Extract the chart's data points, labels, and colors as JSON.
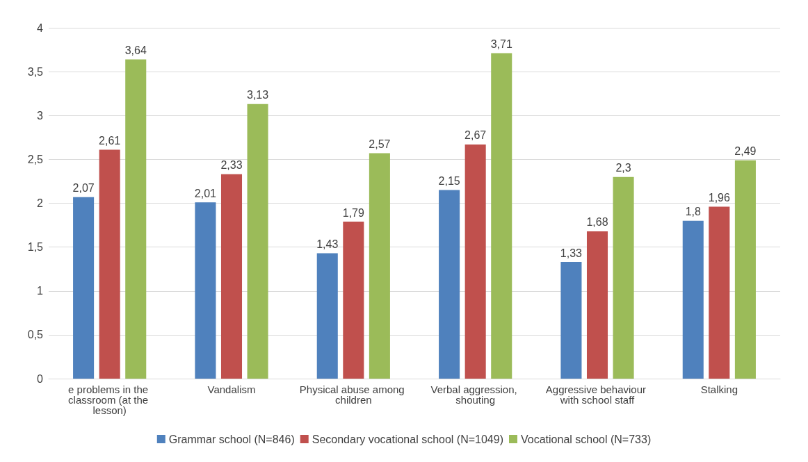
{
  "chart_data": {
    "type": "bar",
    "categories": [
      "e problems in the classroom (at the lesson)",
      "Vandalism",
      "Physical abuse among children",
      "Verbal aggression, shouting",
      "Aggressive behaviour with school staff",
      "Stalking"
    ],
    "series": [
      {
        "name": "Grammar school (N=846)",
        "color": "#4f81bd",
        "values": [
          2.07,
          2.01,
          1.43,
          2.15,
          1.33,
          1.8
        ],
        "value_labels": [
          "2,07",
          "2,01",
          "1,43",
          "2,15",
          "1,33",
          "1,8"
        ]
      },
      {
        "name": "Secondary vocational school (N=1049)",
        "color": "#c0504d",
        "values": [
          2.61,
          2.33,
          1.79,
          2.67,
          1.68,
          1.96
        ],
        "value_labels": [
          "2,61",
          "2,33",
          "1,79",
          "2,67",
          "1,68",
          "1,96"
        ]
      },
      {
        "name": "Vocational school (N=733)",
        "color": "#9bbb59",
        "values": [
          3.64,
          3.13,
          2.57,
          3.71,
          2.3,
          2.49
        ],
        "value_labels": [
          "3,64",
          "3,13",
          "2,57",
          "3,71",
          "2,3",
          "2,49"
        ]
      }
    ],
    "ylim": [
      0,
      4
    ],
    "yticks": [
      0,
      {
        "value": 0.5,
        "label": "0,5"
      },
      1,
      {
        "value": 1.5,
        "label": "1,5"
      },
      2,
      {
        "value": 2.5,
        "label": "2,5"
      },
      3,
      {
        "value": 3.5,
        "label": "3,5"
      },
      4
    ],
    "grid": "y",
    "legend": "bottom"
  }
}
